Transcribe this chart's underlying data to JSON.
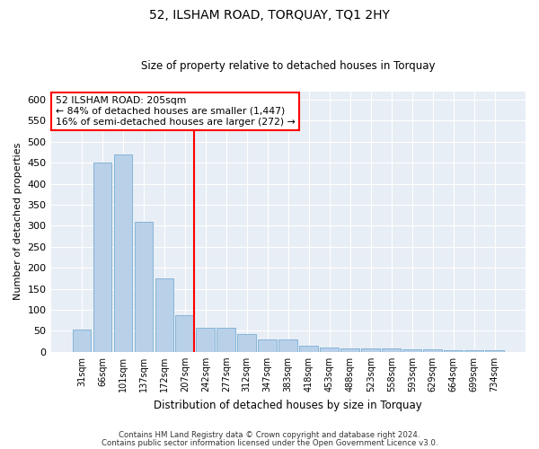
{
  "title": "52, ILSHAM ROAD, TORQUAY, TQ1 2HY",
  "subtitle": "Size of property relative to detached houses in Torquay",
  "xlabel": "Distribution of detached houses by size in Torquay",
  "ylabel": "Number of detached properties",
  "bar_color": "#b8d0e8",
  "bar_edge_color": "#7aafd4",
  "background_color": "#e8eef5",
  "grid_color": "#ffffff",
  "categories": [
    "31sqm",
    "66sqm",
    "101sqm",
    "137sqm",
    "172sqm",
    "207sqm",
    "242sqm",
    "277sqm",
    "312sqm",
    "347sqm",
    "383sqm",
    "418sqm",
    "453sqm",
    "488sqm",
    "523sqm",
    "558sqm",
    "593sqm",
    "629sqm",
    "664sqm",
    "699sqm",
    "734sqm"
  ],
  "values": [
    53,
    450,
    470,
    310,
    175,
    87,
    57,
    57,
    43,
    30,
    30,
    15,
    10,
    8,
    8,
    8,
    7,
    7,
    3,
    3,
    3
  ],
  "ylim": [
    0,
    620
  ],
  "yticks": [
    0,
    50,
    100,
    150,
    200,
    250,
    300,
    350,
    400,
    450,
    500,
    550,
    600
  ],
  "property_line_bin": 5,
  "annotation_title": "52 ILSHAM ROAD: 205sqm",
  "annotation_line1": "← 84% of detached houses are smaller (1,447)",
  "annotation_line2": "16% of semi-detached houses are larger (272) →",
  "footnote1": "Contains HM Land Registry data © Crown copyright and database right 2024.",
  "footnote2": "Contains public sector information licensed under the Open Government Licence v3.0."
}
